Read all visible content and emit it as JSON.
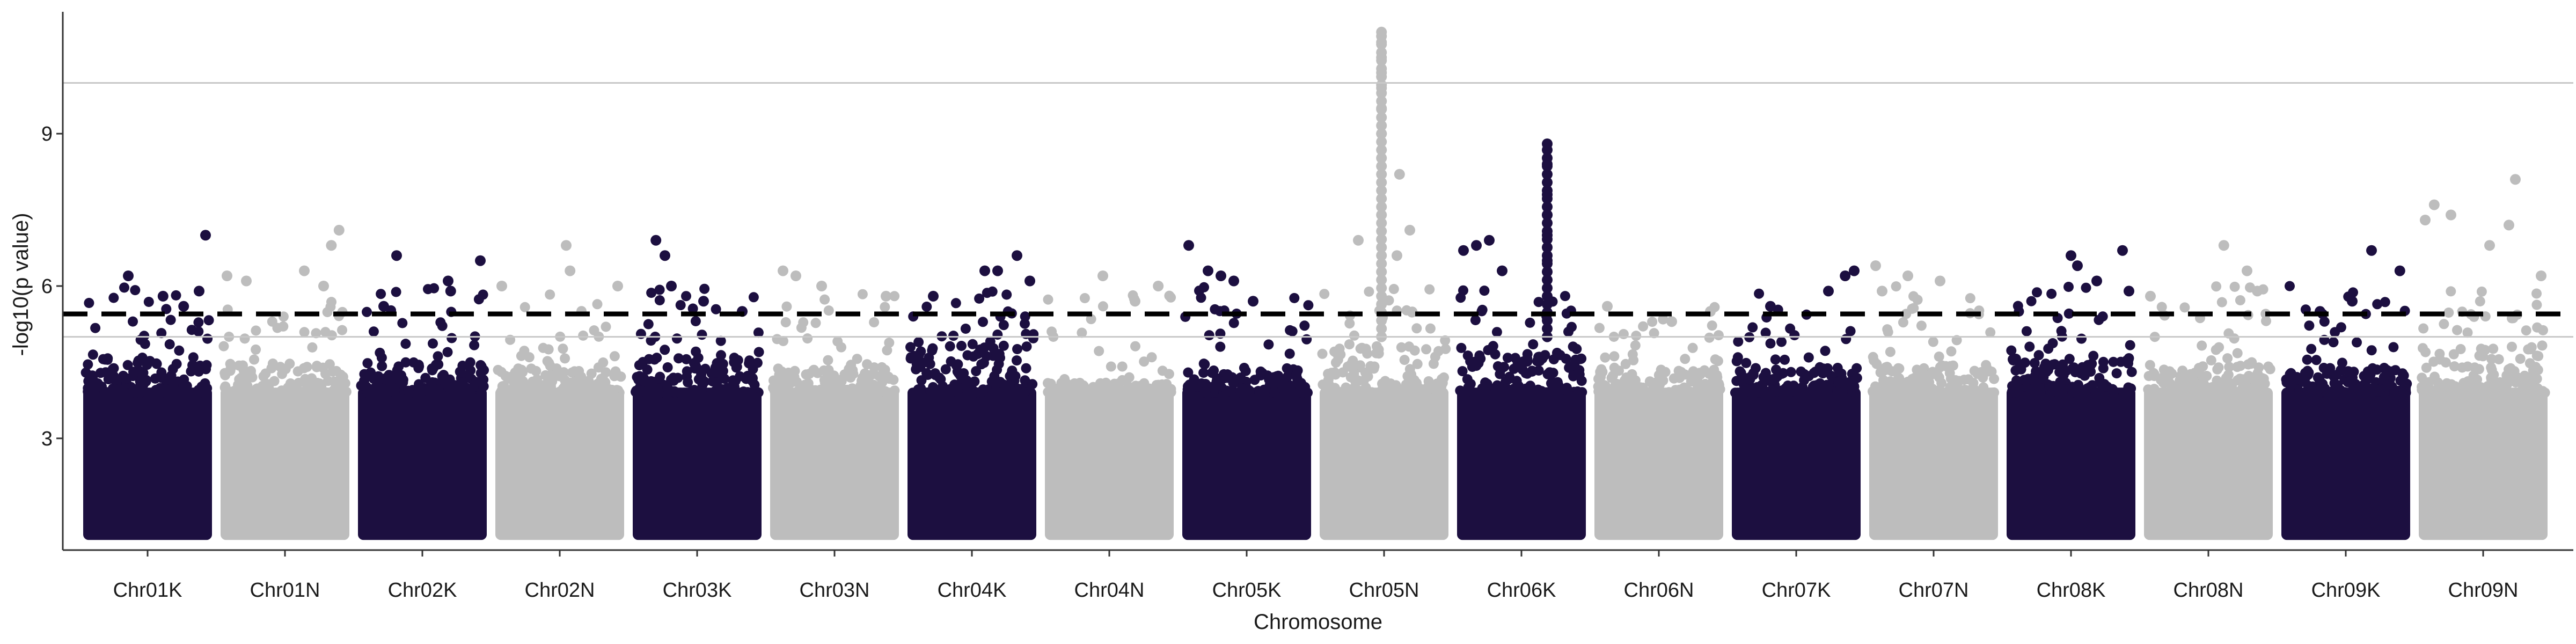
{
  "chart_data": {
    "type": "scatter",
    "title": "",
    "xlabel": "Chromosome",
    "ylabel": "-log10(p value)",
    "ylim": [
      0.8,
      11.4
    ],
    "y_ticks": [
      3,
      6,
      9
    ],
    "grid": false,
    "legend": "none",
    "colors": {
      "dark": "#1c0f40",
      "light": "#bdbdbd",
      "threshold_line": "#000000",
      "reference_line": "#c8c8c8"
    },
    "reference_lines": [
      {
        "y": 5.0,
        "style": "solid",
        "color": "#c8c8c8"
      },
      {
        "y": 10.0,
        "style": "solid",
        "color": "#c8c8c8"
      },
      {
        "y": 5.45,
        "style": "dashed",
        "color": "#000000"
      }
    ],
    "categories": [
      "Chr01K",
      "Chr01N",
      "Chr02K",
      "Chr02N",
      "Chr03K",
      "Chr03N",
      "Chr04K",
      "Chr04N",
      "Chr05K",
      "Chr05N",
      "Chr06K",
      "Chr06N",
      "Chr07K",
      "Chr07N",
      "Chr08K",
      "Chr08N",
      "Chr09K",
      "Chr09N"
    ],
    "series": [
      {
        "chromosome": "Chr01K",
        "color": "dark",
        "baseline_max": 4.6,
        "max": 7.0,
        "top_hits": [
          [
            0.95,
            7.0
          ],
          [
            0.35,
            6.2
          ],
          [
            0.62,
            5.8
          ],
          [
            0.78,
            5.6
          ],
          [
            0.9,
            5.9
          ]
        ]
      },
      {
        "chromosome": "Chr01N",
        "color": "light",
        "baseline_max": 4.5,
        "max": 7.1,
        "top_hits": [
          [
            0.92,
            7.1
          ],
          [
            0.86,
            6.8
          ],
          [
            0.65,
            6.3
          ],
          [
            0.05,
            6.2
          ],
          [
            0.2,
            6.1
          ],
          [
            0.8,
            6.0
          ]
        ]
      },
      {
        "chromosome": "Chr02K",
        "color": "dark",
        "baseline_max": 4.5,
        "max": 6.6,
        "top_hits": [
          [
            0.3,
            6.6
          ],
          [
            0.95,
            6.5
          ],
          [
            0.7,
            6.1
          ],
          [
            0.72,
            5.9
          ],
          [
            0.2,
            5.6
          ]
        ]
      },
      {
        "chromosome": "Chr02N",
        "color": "light",
        "baseline_max": 4.4,
        "max": 6.8,
        "top_hits": [
          [
            0.55,
            6.8
          ],
          [
            0.58,
            6.3
          ],
          [
            0.05,
            6.0
          ],
          [
            0.95,
            6.0
          ]
        ]
      },
      {
        "chromosome": "Chr03K",
        "color": "dark",
        "baseline_max": 4.6,
        "max": 6.9,
        "top_hits": [
          [
            0.18,
            6.9
          ],
          [
            0.25,
            6.6
          ],
          [
            0.3,
            6.0
          ],
          [
            0.55,
            5.7
          ],
          [
            0.85,
            5.5
          ]
        ]
      },
      {
        "chromosome": "Chr03N",
        "color": "light",
        "baseline_max": 4.4,
        "max": 6.3,
        "top_hits": [
          [
            0.1,
            6.3
          ],
          [
            0.2,
            6.2
          ],
          [
            0.4,
            6.0
          ],
          [
            0.9,
            5.8
          ]
        ]
      },
      {
        "chromosome": "Chr04K",
        "color": "dark",
        "baseline_max": 4.9,
        "max": 6.6,
        "top_hits": [
          [
            0.85,
            6.6
          ],
          [
            0.6,
            6.3
          ],
          [
            0.7,
            6.3
          ],
          [
            0.95,
            6.1
          ],
          [
            0.2,
            5.8
          ]
        ]
      },
      {
        "chromosome": "Chr04N",
        "color": "light",
        "baseline_max": 4.1,
        "max": 6.2,
        "top_hits": [
          [
            0.45,
            6.2
          ],
          [
            0.7,
            5.7
          ],
          [
            0.88,
            6.0
          ]
        ]
      },
      {
        "chromosome": "Chr05K",
        "color": "dark",
        "baseline_max": 4.4,
        "max": 6.8,
        "top_hits": [
          [
            0.05,
            6.8
          ],
          [
            0.2,
            6.3
          ],
          [
            0.3,
            6.2
          ],
          [
            0.4,
            6.1
          ],
          [
            0.55,
            5.7
          ]
        ]
      },
      {
        "chromosome": "Chr05N",
        "color": "light",
        "baseline_max": 4.8,
        "max": 11.0,
        "peak_fraction": 0.48,
        "top_hits": [
          [
            0.48,
            11.0
          ],
          [
            0.48,
            10.8
          ],
          [
            0.48,
            10.5
          ],
          [
            0.48,
            10.2
          ],
          [
            0.48,
            9.9
          ],
          [
            0.48,
            9.5
          ],
          [
            0.48,
            9.0
          ],
          [
            0.62,
            8.2
          ],
          [
            0.7,
            7.1
          ],
          [
            0.3,
            6.9
          ],
          [
            0.6,
            6.6
          ]
        ]
      },
      {
        "chromosome": "Chr06K",
        "color": "dark",
        "baseline_max": 4.7,
        "max": 8.8,
        "peak_fraction": 0.7,
        "top_hits": [
          [
            0.7,
            8.8
          ],
          [
            0.7,
            8.4
          ],
          [
            0.7,
            7.8
          ],
          [
            0.7,
            7.4
          ],
          [
            0.7,
            7.0
          ],
          [
            0.7,
            6.5
          ],
          [
            0.05,
            6.7
          ],
          [
            0.15,
            6.8
          ],
          [
            0.25,
            6.9
          ],
          [
            0.35,
            6.3
          ]
        ]
      },
      {
        "chromosome": "Chr06N",
        "color": "light",
        "baseline_max": 4.4,
        "max": 5.6,
        "top_hits": [
          [
            0.1,
            5.6
          ],
          [
            0.6,
            5.3
          ],
          [
            0.9,
            5.5
          ]
        ]
      },
      {
        "chromosome": "Chr07K",
        "color": "dark",
        "baseline_max": 4.4,
        "max": 6.3,
        "top_hits": [
          [
            0.95,
            6.3
          ],
          [
            0.88,
            6.2
          ],
          [
            0.75,
            5.9
          ],
          [
            0.3,
            5.6
          ]
        ]
      },
      {
        "chromosome": "Chr07N",
        "color": "light",
        "baseline_max": 4.5,
        "max": 6.4,
        "top_hits": [
          [
            0.05,
            6.4
          ],
          [
            0.3,
            6.2
          ],
          [
            0.55,
            6.1
          ],
          [
            0.1,
            5.9
          ]
        ]
      },
      {
        "chromosome": "Chr08K",
        "color": "dark",
        "baseline_max": 4.6,
        "max": 6.7,
        "top_hits": [
          [
            0.9,
            6.7
          ],
          [
            0.5,
            6.6
          ],
          [
            0.55,
            6.4
          ],
          [
            0.7,
            6.1
          ],
          [
            0.95,
            5.9
          ]
        ]
      },
      {
        "chromosome": "Chr08N",
        "color": "light",
        "baseline_max": 4.5,
        "max": 6.8,
        "top_hits": [
          [
            0.62,
            6.8
          ],
          [
            0.8,
            6.3
          ],
          [
            0.88,
            5.9
          ],
          [
            0.05,
            5.8
          ]
        ]
      },
      {
        "chromosome": "Chr09K",
        "color": "dark",
        "baseline_max": 4.4,
        "max": 6.7,
        "top_hits": [
          [
            0.7,
            6.7
          ],
          [
            0.92,
            6.3
          ],
          [
            0.55,
            5.7
          ],
          [
            0.3,
            5.5
          ]
        ]
      },
      {
        "chromosome": "Chr09N",
        "color": "light",
        "baseline_max": 4.8,
        "max": 8.1,
        "top_hits": [
          [
            0.75,
            8.1
          ],
          [
            0.12,
            7.6
          ],
          [
            0.05,
            7.3
          ],
          [
            0.25,
            7.4
          ],
          [
            0.7,
            7.2
          ],
          [
            0.55,
            6.8
          ],
          [
            0.95,
            6.2
          ]
        ]
      }
    ]
  }
}
